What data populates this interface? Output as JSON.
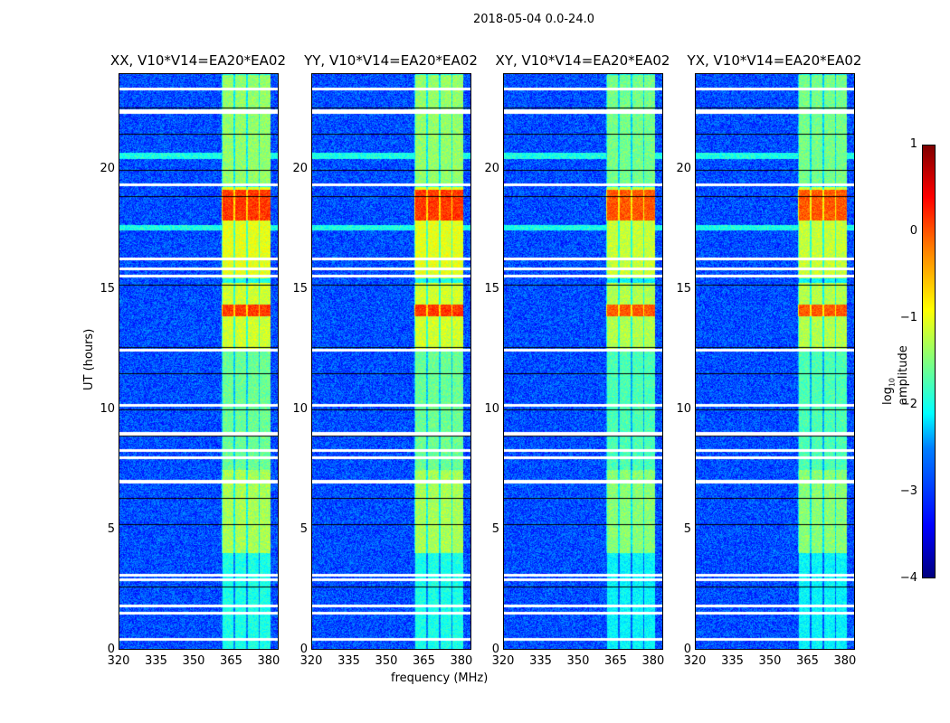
{
  "chart_data": {
    "type": "heatmap",
    "title": "2018-05-04 0.0-24.0",
    "panels": [
      {
        "title": "XX, V10*V14=EA20*EA02"
      },
      {
        "title": "YY, V10*V14=EA20*EA02"
      },
      {
        "title": "XY, V10*V14=EA20*EA02"
      },
      {
        "title": "YX, V10*V14=EA20*EA02"
      }
    ],
    "xlabel": "frequency (MHz)",
    "ylabel": "UT (hours)",
    "xlim": [
      320,
      384
    ],
    "ylim": [
      0,
      24
    ],
    "xticks": [
      "320",
      "335",
      "350",
      "365",
      "380"
    ],
    "yticks": [
      "0",
      "5",
      "10",
      "15",
      "20"
    ],
    "colorbar": {
      "label": "log10 amplitude",
      "label_main": "log",
      "label_sub": "10",
      "label_rest": " amplitude",
      "range": [
        -4,
        1
      ],
      "ticks": [
        "1",
        "0",
        "−1",
        "−2",
        "−3",
        "−4"
      ],
      "colormap": "jet"
    },
    "background_level": -3,
    "rfi_band_mhz": [
      361,
      381
    ],
    "rfi_levels": [
      {
        "t": [
          0,
          4
        ],
        "v": -2
      },
      {
        "t": [
          4,
          7.5
        ],
        "v": -1.3
      },
      {
        "t": [
          7.5,
          12.5
        ],
        "v": -1.6
      },
      {
        "t": [
          12.5,
          15.3
        ],
        "v": -1.1
      },
      {
        "t": [
          15.5,
          19.3
        ],
        "v": -1.0
      },
      {
        "t": [
          19.4,
          24
        ],
        "v": -1.4
      }
    ],
    "strong_rfi_hours": [
      [
        17.9,
        19.2
      ],
      [
        13.9,
        14.4
      ]
    ],
    "broadband_rfi_hours": [
      20.6,
      17.6
    ],
    "flagged_hours": [
      0.4,
      1.5,
      1.8,
      2.9,
      3.1,
      7.0,
      8.0,
      8.3,
      9.0,
      10.2,
      12.5,
      15.6,
      15.9,
      16.3,
      19.4,
      22.4,
      22.5,
      23.4
    ]
  }
}
